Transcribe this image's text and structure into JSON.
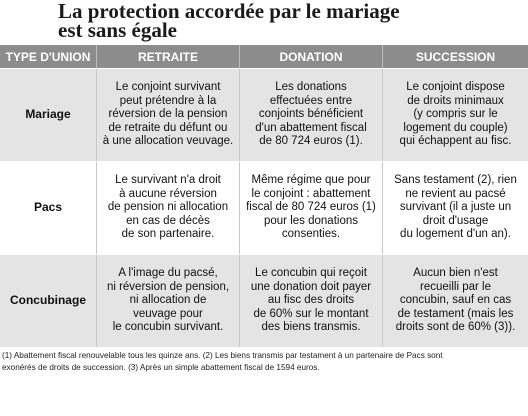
{
  "header": {
    "title_lines": [
      "La protection accordée par le mariage",
      "est sans égale"
    ]
  },
  "table": {
    "columns": [
      "TYPE D'UNION",
      "RETRAITE",
      "DONATION",
      "SUCCESSION"
    ],
    "rows": [
      {
        "label": "Mariage",
        "cells": [
          [
            "Le conjoint survivant",
            "peut prétendre à la",
            "réversion de la pension",
            "de retraite du défunt ou",
            "à une allocation veuvage."
          ],
          [
            "Les donations",
            "effectuées entre",
            "conjoints bénéficient",
            "d'un abattement fiscal",
            "de 80 724 euros (1)."
          ],
          [
            "Le conjoint dispose",
            "de droits minimaux",
            "(y compris sur le",
            "logement du couple)",
            "qui échappent au fisc."
          ]
        ]
      },
      {
        "label": "Pacs",
        "cells": [
          [
            "Le survivant n'a droit",
            "à aucune réversion",
            "de pension ni allocation",
            "en cas de décès",
            "de son partenaire."
          ],
          [
            "Même régime que pour",
            "le conjoint : abattement",
            "fiscal de 80 724 euros (1)",
            "pour les donations",
            "consenties."
          ],
          [
            "Sans testament (2), rien",
            "ne revient au pacsé",
            "survivant (il a juste un",
            "droit d'usage",
            "du logement d'un an)."
          ]
        ]
      },
      {
        "label": "Concubinage",
        "cells": [
          [
            "A l'image du pacsé,",
            "ni réversion de pension,",
            "ni allocation de",
            "veuvage pour",
            "le concubin survivant."
          ],
          [
            "Le concubin qui reçoit",
            "une donation doit payer",
            "au fisc des droits",
            "de 60% sur le montant",
            "des biens transmis."
          ],
          [
            "Aucun bien n'est",
            "recueilli par le",
            "concubin, sauf en cas",
            "de testament (mais les",
            "droits sont de 60% (3))."
          ]
        ]
      }
    ]
  },
  "footnote": {
    "lines": [
      "(1) Abattement fiscal renouvelable tous les quinze ans. (2) Les biens transmis par testament à un partenaire de Pacs sont",
      "exonérés de droits de succession. (3) Après un simple abattement fiscal de 1594 euros."
    ]
  }
}
